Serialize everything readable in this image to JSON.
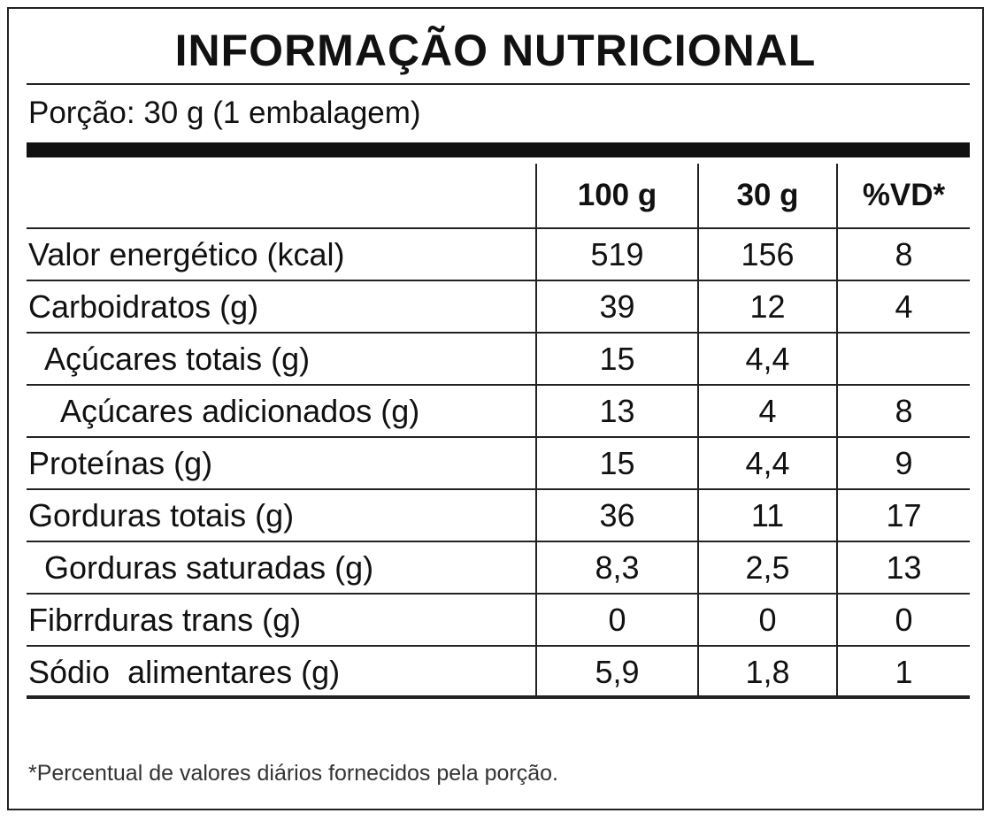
{
  "header": {
    "title": "INFORMAÇÃO NUTRICIONAL",
    "portion": "Porção: 30 g (1 embalagem)"
  },
  "table": {
    "columns": [
      "100 g",
      "30 g",
      "%VD*"
    ],
    "rows": [
      [
        "Valor energético (kcal)",
        "519",
        "156",
        "8"
      ],
      [
        "Carboidratos (g)",
        "39",
        "12",
        "4"
      ],
      [
        "Açúcares totais (g)",
        "15",
        "4,4",
        null
      ],
      [
        "Açúcares adicionados (g)",
        "13",
        "4",
        "8"
      ],
      [
        "Proteínas (g)",
        "15",
        "4,4",
        "9"
      ],
      [
        "Gorduras totais (g)",
        "36",
        "11",
        "17"
      ],
      [
        "Gorduras saturadas (g)",
        "8,3",
        "2,5",
        "13"
      ],
      [
        "Fibrrduras trans (g)",
        "0",
        "0",
        "0"
      ],
      [
        "Sódio  alimentares (g)",
        "5,9",
        "1,8",
        "1"
      ]
    ]
  },
  "footnote": "*Percentual de valores diários fornecidos pela porção."
}
